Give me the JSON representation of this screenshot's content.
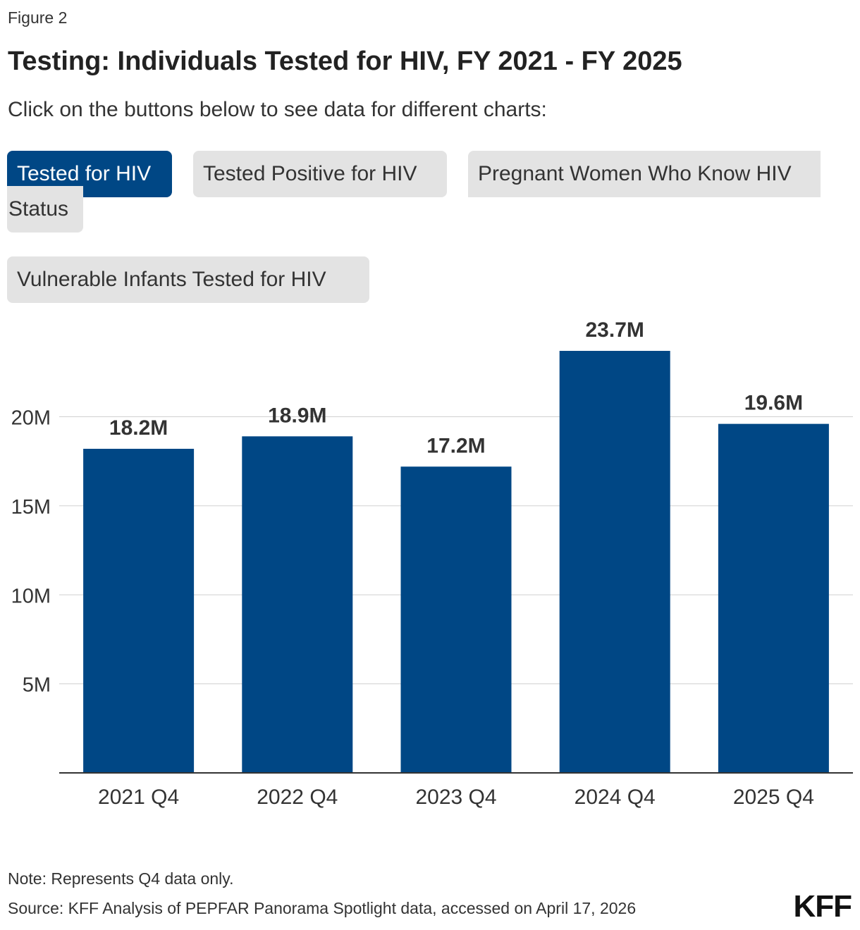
{
  "figure_label": "Figure 2",
  "title": "Testing: Individuals Tested for HIV, FY 2021 - FY 2025",
  "subtitle": "Click on the buttons below to see data for different charts:",
  "buttons": {
    "tested": "Tested for HIV",
    "positive": "Tested Positive for HIV",
    "pregnant_line1": "Pregnant Women Who Know HIV",
    "pregnant_line2": "Status",
    "infants": "Vulnerable Infants Tested for HIV"
  },
  "colors": {
    "bar": "#004785",
    "active_button": "#004785",
    "inactive_button": "#e3e3e3",
    "grid": "#d0d0d0",
    "axis": "#333333"
  },
  "chart_data": {
    "type": "bar",
    "categories": [
      "2021 Q4",
      "2022 Q4",
      "2023 Q4",
      "2024 Q4",
      "2025 Q4"
    ],
    "values": [
      18.2,
      18.9,
      17.2,
      23.7,
      19.6
    ],
    "data_labels": [
      "18.2M",
      "18.9M",
      "17.2M",
      "23.7M",
      "19.6M"
    ],
    "unit": "millions",
    "yticks": [
      5,
      10,
      15,
      20
    ],
    "ytick_labels": [
      "5M",
      "10M",
      "15M",
      "20M"
    ],
    "ylim": [
      0,
      23.7
    ],
    "grid": true,
    "legend": false
  },
  "note": "Note: Represents Q4 data only.",
  "source": "Source: KFF Analysis of PEPFAR Panorama Spotlight data, accessed on April 17, 2026",
  "logo_text": "KFF"
}
